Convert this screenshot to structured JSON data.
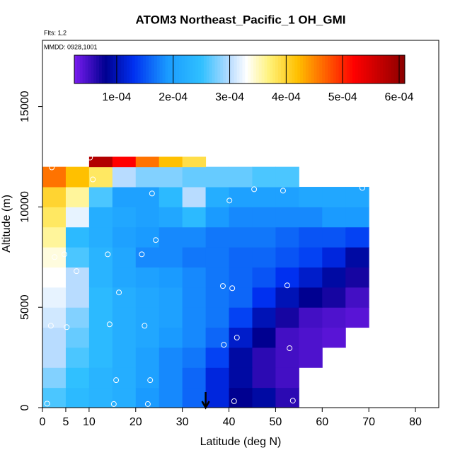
{
  "chart_data": {
    "type": "heatmap",
    "title": "ATOM3 Northeast_Pacific_1 OH_GMI",
    "annotations": [
      "Flts: 1,2",
      "MMDD: 0928,1001"
    ],
    "x_label": "Latitude (deg N)",
    "y_label": "Altitude (m)",
    "xlim": [
      0,
      85
    ],
    "ylim": [
      0,
      18300
    ],
    "xticks": [
      0,
      5,
      10,
      20,
      30,
      40,
      50,
      60,
      70,
      80
    ],
    "yticks": [
      0,
      5000,
      10000,
      15000
    ],
    "x_edges": [
      0,
      5,
      10,
      15,
      20,
      25,
      30,
      35,
      40,
      45,
      50,
      55,
      60,
      65,
      70,
      75
    ],
    "y_edges": [
      0,
      1000,
      2000,
      3000,
      4000,
      5000,
      6000,
      7000,
      8000,
      9000,
      10000,
      11000,
      12000,
      12500
    ],
    "values": [
      [
        0.00026,
        0.00024,
        0.00023,
        0.00022,
        0.00019,
        0.00018,
        0.00016,
        0.00012,
        8e-05,
        9e-05,
        6e-05,
        null,
        null,
        null,
        null
      ],
      [
        0.00028,
        0.00025,
        0.00023,
        0.00022,
        0.0002,
        0.00018,
        0.00016,
        0.00012,
        9e-05,
        6e-05,
        5e-05,
        null,
        null,
        null,
        null
      ],
      [
        0.0003,
        0.00026,
        0.00024,
        0.00022,
        0.0002,
        0.00018,
        0.00017,
        0.00014,
        9e-05,
        6e-05,
        5e-05,
        4.5e-05,
        null,
        null,
        null
      ],
      [
        0.0003,
        0.00027,
        0.00024,
        0.00022,
        0.00021,
        0.00019,
        0.00018,
        0.00016,
        0.00011,
        8e-05,
        5e-05,
        4.5e-05,
        4e-05,
        null,
        null
      ],
      [
        0.00031,
        0.00028,
        0.00024,
        0.00022,
        0.00021,
        0.0002,
        0.00018,
        0.00017,
        0.00014,
        0.0001,
        7e-05,
        5e-05,
        4.5e-05,
        4e-05,
        null
      ],
      [
        0.00032,
        0.0003,
        0.00024,
        0.00022,
        0.00021,
        0.0002,
        0.00018,
        0.00017,
        0.00016,
        0.00013,
        0.0001,
        8e-05,
        7e-05,
        5e-05,
        null
      ],
      [
        0.00033,
        0.0003,
        0.00023,
        0.00021,
        0.0002,
        0.00019,
        0.00018,
        0.00017,
        0.00016,
        0.00015,
        0.00013,
        0.00011,
        9e-05,
        7e-05,
        null
      ],
      [
        0.00034,
        0.00026,
        0.00023,
        0.00021,
        0.00018,
        0.00018,
        0.00017,
        0.00017,
        0.00016,
        0.00016,
        0.00015,
        0.00014,
        0.00012,
        9e-05,
        null
      ],
      [
        0.00036,
        0.00024,
        0.00022,
        0.0002,
        0.00019,
        0.00018,
        0.00018,
        0.00017,
        0.00017,
        0.00017,
        0.00016,
        0.00015,
        0.00015,
        0.00014,
        null
      ],
      [
        0.00038,
        0.00032,
        0.00022,
        0.00021,
        0.0002,
        0.00021,
        0.00024,
        0.00019,
        0.00018,
        0.00018,
        0.00018,
        0.00018,
        0.00019,
        0.00019,
        null
      ],
      [
        0.0004,
        0.00036,
        0.00026,
        0.0002,
        0.0002,
        0.00024,
        0.0003,
        0.00022,
        0.0002,
        0.0002,
        0.0002,
        0.00021,
        0.00021,
        0.00021,
        null
      ],
      [
        0.00046,
        0.00042,
        0.00038,
        0.0003,
        0.00028,
        0.00028,
        0.00027,
        0.00027,
        0.00027,
        0.00026,
        0.00026,
        null,
        null,
        null,
        null
      ],
      [
        null,
        null,
        0.00058,
        0.00052,
        0.00046,
        0.00042,
        0.00039,
        null,
        null,
        null,
        null,
        null,
        null,
        null,
        null
      ]
    ],
    "points": {
      "x": [
        1,
        15.3,
        22.6,
        41.1,
        53.7,
        15.8,
        23.1,
        53,
        38.9,
        41.7,
        1.8,
        5.2,
        14.4,
        21.9,
        16.4,
        38.7,
        40.7,
        52.5,
        70.9,
        7.3,
        2.6,
        4.7,
        14,
        21.3,
        24.3,
        40.1,
        23.5,
        45.4,
        51.6,
        68.6,
        10.8,
        58.6,
        2,
        10.2
      ],
      "y": [
        200,
        180,
        180,
        320,
        350,
        1370,
        1370,
        2960,
        3130,
        3490,
        4080,
        4010,
        4150,
        4080,
        5740,
        6060,
        5950,
        6090,
        6090,
        6800,
        7500,
        7640,
        7640,
        7640,
        8350,
        10320,
        10670,
        10880,
        10810,
        10950,
        11370,
        11230,
        11970,
        12460
      ]
    },
    "marker_lat": 35,
    "colorbar_lim": [
      2.5e-05,
      0.00061
    ],
    "colorbar_ticks": [
      {
        "value": 0.0001,
        "label": "1e-04"
      },
      {
        "value": 0.0002,
        "label": "2e-04"
      },
      {
        "value": 0.0003,
        "label": "3e-04"
      },
      {
        "value": 0.0004,
        "label": "4e-04"
      },
      {
        "value": 0.0005,
        "label": "5e-04"
      },
      {
        "value": 0.0006,
        "label": "6e-04"
      }
    ],
    "colorscale": [
      {
        "value": 2.5e-05,
        "color": "#7a1cf0"
      },
      {
        "value": 8e-05,
        "color": "#000090"
      },
      {
        "value": 0.00013,
        "color": "#0030f0"
      },
      {
        "value": 0.00019,
        "color": "#1a9bff"
      },
      {
        "value": 0.00025,
        "color": "#30c0ff"
      },
      {
        "value": 0.0003,
        "color": "#b8dcff"
      },
      {
        "value": 0.00033,
        "color": "#ffffff"
      },
      {
        "value": 0.00037,
        "color": "#fff27a"
      },
      {
        "value": 0.00042,
        "color": "#ffc000"
      },
      {
        "value": 0.00047,
        "color": "#ff6000"
      },
      {
        "value": 0.00052,
        "color": "#ff0000"
      },
      {
        "value": 0.00061,
        "color": "#8b0000"
      }
    ]
  }
}
